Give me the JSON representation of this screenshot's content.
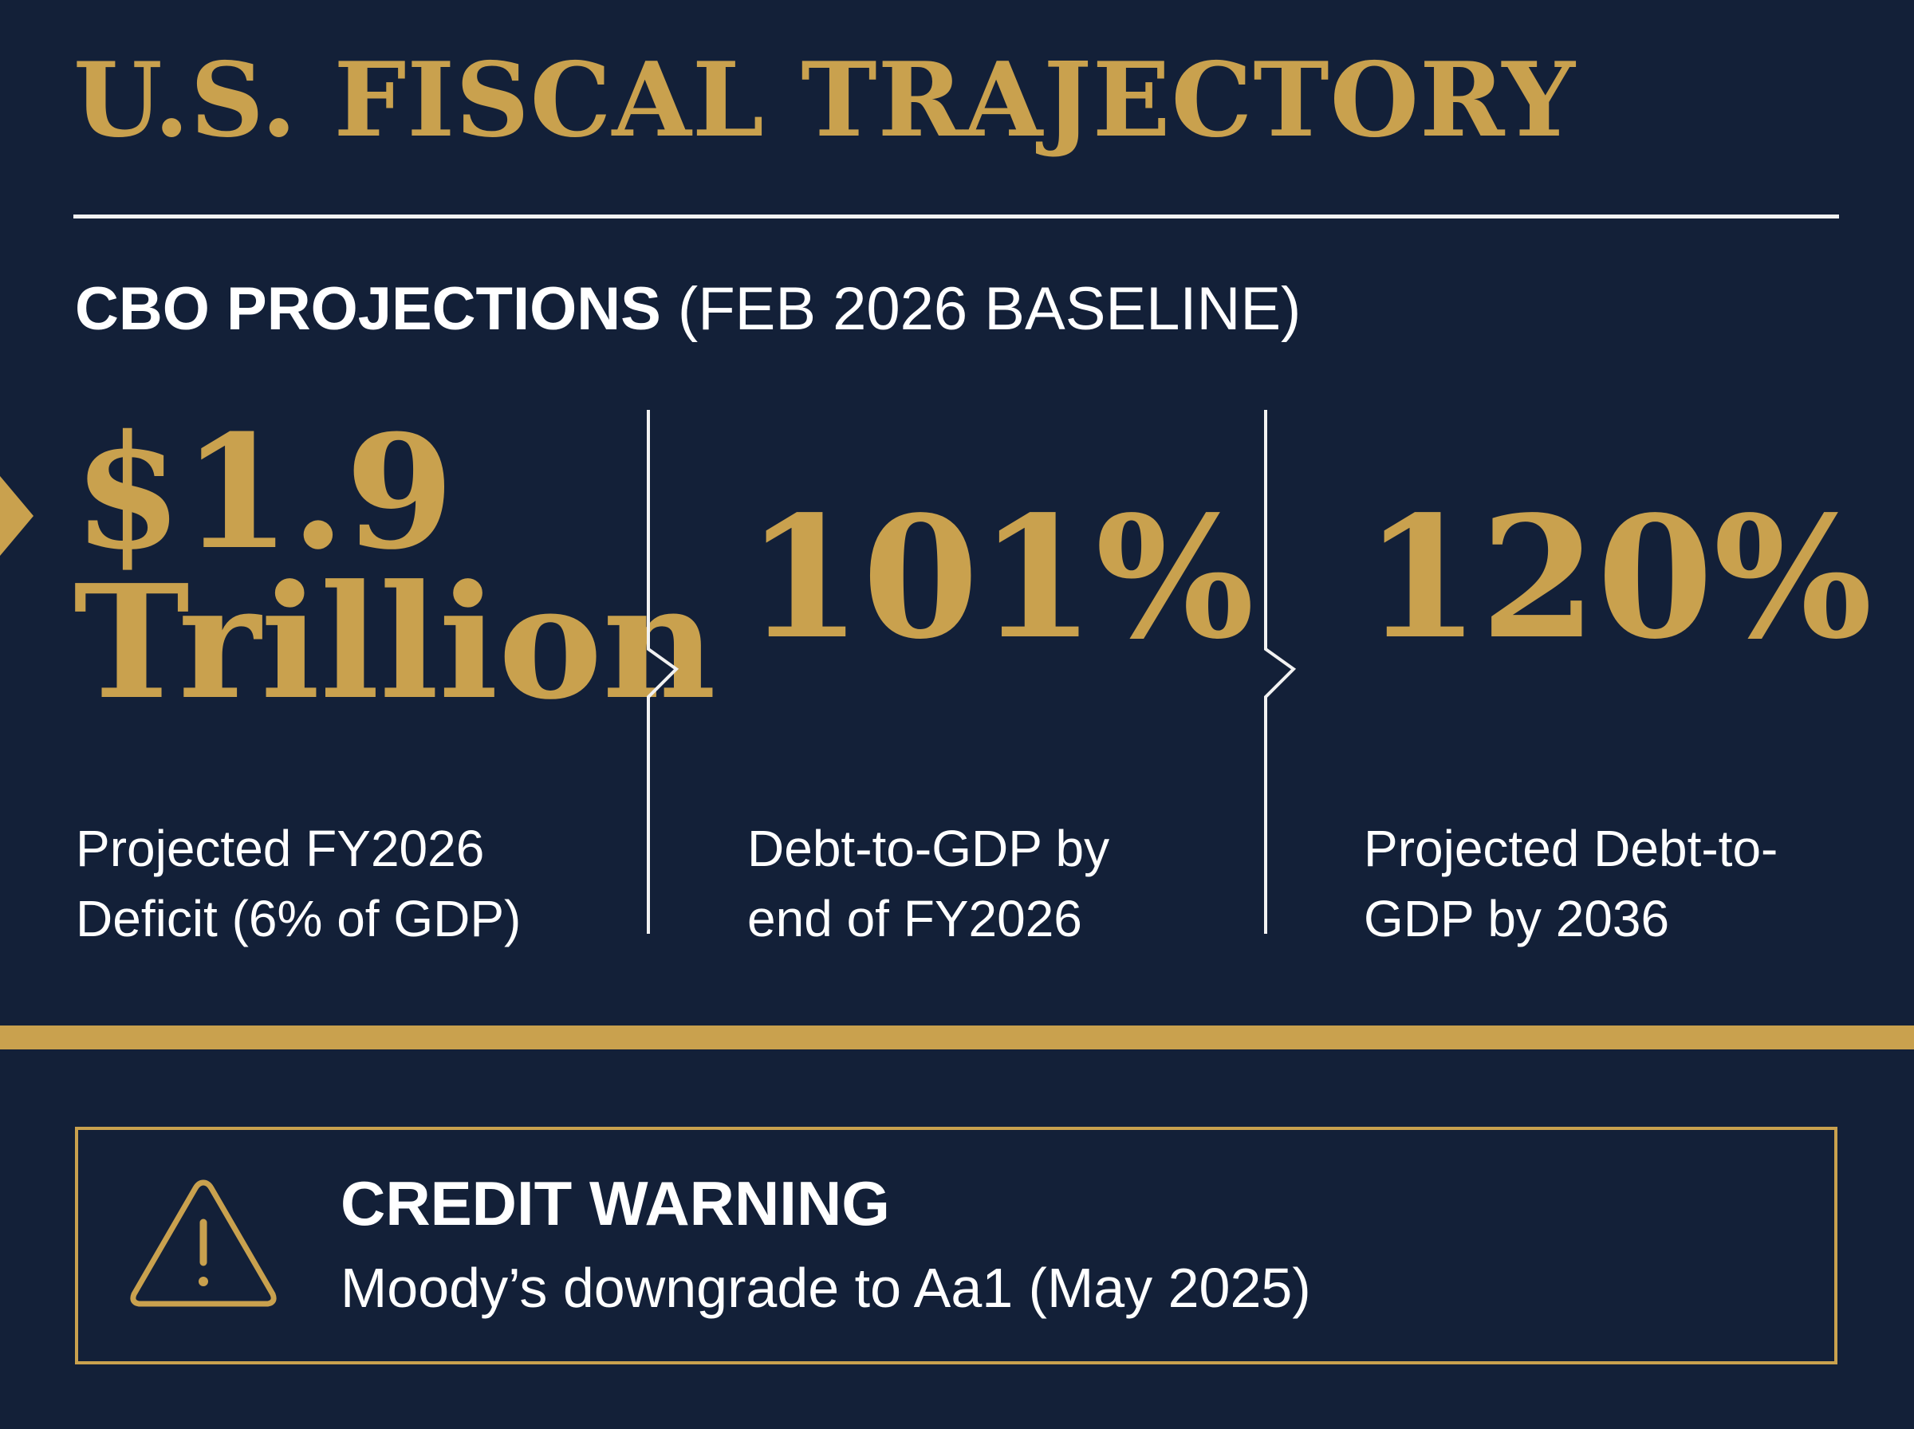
{
  "header": {
    "title": "U.S. FISCAL TRAJECTORY",
    "subtitle_bold": "CBO PROJECTIONS",
    "subtitle_rest": "(FEB 2026 BASELINE)"
  },
  "stats": [
    {
      "value_line1": "$1.9",
      "value_line2": "Trillion",
      "caption_line1": "Projected FY2026",
      "caption_line2": "Deficit (6% of GDP)"
    },
    {
      "value": "101%",
      "caption_line1": "Debt-to-GDP by",
      "caption_line2": "end of FY2026"
    },
    {
      "value": "120%",
      "caption_line1": "Projected Debt-to-",
      "caption_line2": "GDP by 2036"
    }
  ],
  "warning": {
    "title": "CREDIT WARNING",
    "text": "Moody’s downgrade to Aa1 (May 2025)",
    "icon": "warning-triangle-icon"
  },
  "colors": {
    "background": "#132038",
    "accent_gold": "#c9a14e",
    "text": "#ffffff"
  }
}
